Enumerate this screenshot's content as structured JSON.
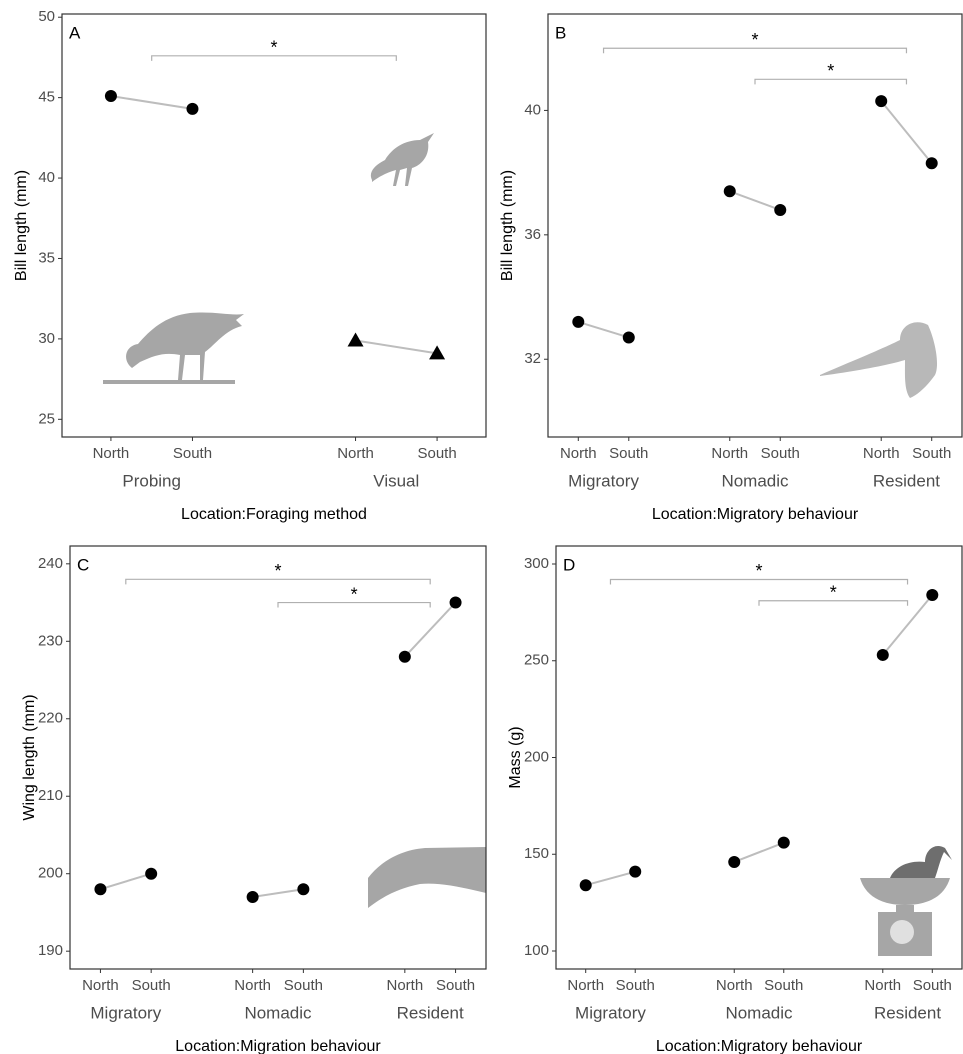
{
  "chart_data": [
    {
      "type": "line",
      "panel": "A",
      "ylabel": "Bill length (mm)",
      "xlabel": "Location:Foraging method",
      "ylim": [
        23.9,
        50.2
      ],
      "yticks": [
        25,
        30,
        35,
        40,
        45,
        50
      ],
      "color": "#000000",
      "line_color": "#bdbdbd",
      "bracket_color": "#b0b0b0",
      "groups": [
        {
          "name": "Probing",
          "marker": "circle",
          "categories": [
            "North",
            "South"
          ],
          "values": [
            45.1,
            44.3
          ]
        },
        {
          "name": "Visual",
          "marker": "triangle",
          "categories": [
            "North",
            "South"
          ],
          "values": [
            29.9,
            29.1
          ]
        }
      ],
      "brackets": [
        {
          "from": 0,
          "to": 1,
          "y": 47.6,
          "label": "*"
        }
      ]
    },
    {
      "type": "line",
      "panel": "B",
      "ylabel": "Bill length (mm)",
      "xlabel": "Location:Migratory behaviour",
      "ylim": [
        29.5,
        43.1
      ],
      "yticks": [
        32,
        36,
        40
      ],
      "color": "#000000",
      "line_color": "#bdbdbd",
      "bracket_color": "#b0b0b0",
      "groups": [
        {
          "name": "Migratory",
          "marker": "circle",
          "categories": [
            "North",
            "South"
          ],
          "values": [
            33.2,
            32.7
          ]
        },
        {
          "name": "Nomadic",
          "marker": "circle",
          "categories": [
            "North",
            "South"
          ],
          "values": [
            37.4,
            36.8
          ]
        },
        {
          "name": "Resident",
          "marker": "circle",
          "categories": [
            "North",
            "South"
          ],
          "values": [
            40.3,
            38.3
          ]
        }
      ],
      "brackets": [
        {
          "from": 0,
          "to": 2,
          "y": 42.0,
          "label": "*"
        },
        {
          "from": 1,
          "to": 2,
          "y": 41.0,
          "label": "*"
        }
      ]
    },
    {
      "type": "line",
      "panel": "C",
      "ylabel": "Wing length (mm)",
      "xlabel": "Location:Migration behaviour",
      "ylim": [
        187.7,
        242.3
      ],
      "yticks": [
        190,
        200,
        210,
        220,
        230,
        240
      ],
      "color": "#000000",
      "line_color": "#bdbdbd",
      "bracket_color": "#b0b0b0",
      "groups": [
        {
          "name": "Migratory",
          "marker": "circle",
          "categories": [
            "North",
            "South"
          ],
          "values": [
            198,
            200
          ]
        },
        {
          "name": "Nomadic",
          "marker": "circle",
          "categories": [
            "North",
            "South"
          ],
          "values": [
            197,
            198
          ]
        },
        {
          "name": "Resident",
          "marker": "circle",
          "categories": [
            "North",
            "South"
          ],
          "values": [
            228,
            235
          ]
        }
      ],
      "brackets": [
        {
          "from": 0,
          "to": 2,
          "y": 238,
          "label": "*"
        },
        {
          "from": 1,
          "to": 2,
          "y": 235,
          "label": "*"
        }
      ]
    },
    {
      "type": "line",
      "panel": "D",
      "ylabel": "Mass (g)",
      "xlabel": "Location:Migratory behaviour",
      "ylim": [
        90.7,
        309.3
      ],
      "yticks": [
        100,
        150,
        200,
        250,
        300
      ],
      "color": "#000000",
      "line_color": "#bdbdbd",
      "bracket_color": "#b0b0b0",
      "groups": [
        {
          "name": "Migratory",
          "marker": "circle",
          "categories": [
            "North",
            "South"
          ],
          "values": [
            134,
            141
          ]
        },
        {
          "name": "Nomadic",
          "marker": "circle",
          "categories": [
            "North",
            "South"
          ],
          "values": [
            146,
            156
          ]
        },
        {
          "name": "Resident",
          "marker": "circle",
          "categories": [
            "North",
            "South"
          ],
          "values": [
            253,
            284
          ]
        }
      ],
      "brackets": [
        {
          "from": 0,
          "to": 2,
          "y": 292,
          "label": "*"
        },
        {
          "from": 1,
          "to": 2,
          "y": 281,
          "label": "*"
        }
      ]
    }
  ]
}
